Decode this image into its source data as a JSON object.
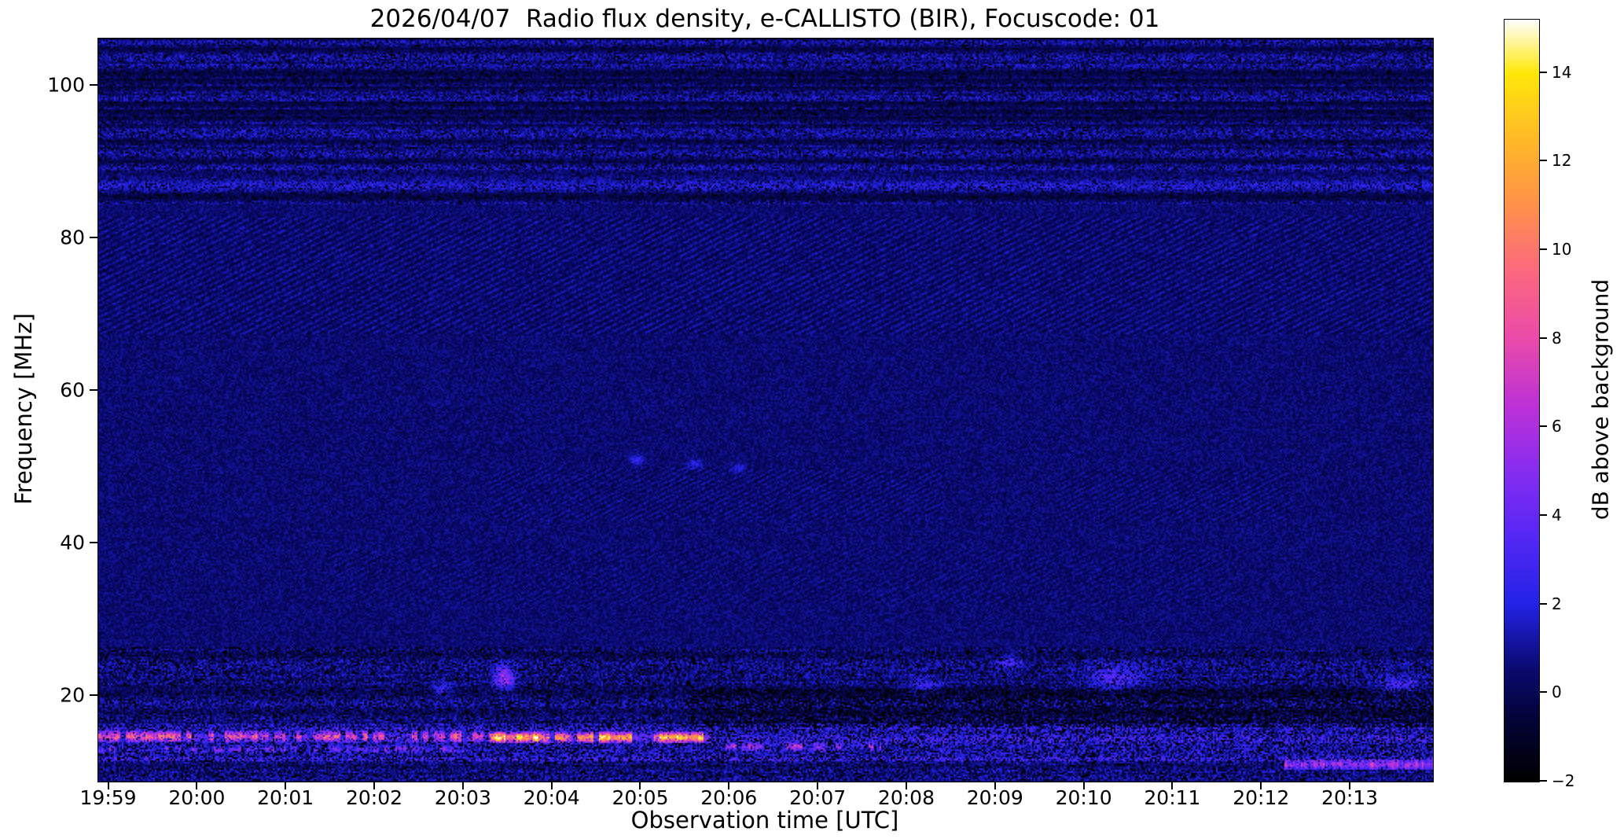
{
  "chart_data": {
    "type": "heatmap",
    "title": "2026/04/07  Radio flux density, e-CALLISTO (BIR), Focuscode: 01",
    "xlabel": "Observation time [UTC]",
    "ylabel": "Frequency [MHz]",
    "colorbar_label": "dB above background",
    "time_range_minutes_after_1959": [
      -0.12,
      14.93
    ],
    "freq_range_mhz": [
      8.8,
      106.2
    ],
    "x_ticks": [
      {
        "t": 0,
        "label": "19:59"
      },
      {
        "t": 1,
        "label": "20:00"
      },
      {
        "t": 2,
        "label": "20:01"
      },
      {
        "t": 3,
        "label": "20:02"
      },
      {
        "t": 4,
        "label": "20:03"
      },
      {
        "t": 5,
        "label": "20:04"
      },
      {
        "t": 6,
        "label": "20:05"
      },
      {
        "t": 7,
        "label": "20:06"
      },
      {
        "t": 8,
        "label": "20:07"
      },
      {
        "t": 9,
        "label": "20:08"
      },
      {
        "t": 10,
        "label": "20:09"
      },
      {
        "t": 11,
        "label": "20:10"
      },
      {
        "t": 12,
        "label": "20:11"
      },
      {
        "t": 13,
        "label": "20:12"
      },
      {
        "t": 14,
        "label": "20:13"
      }
    ],
    "y_ticks": [
      {
        "v": 20,
        "label": "20"
      },
      {
        "v": 40,
        "label": "40"
      },
      {
        "v": 60,
        "label": "60"
      },
      {
        "v": 80,
        "label": "80"
      },
      {
        "v": 100,
        "label": "100"
      }
    ],
    "colorbar_range": [
      -2,
      15.2
    ],
    "colorbar_ticks": [
      {
        "v": -2,
        "label": "−2"
      },
      {
        "v": 0,
        "label": "0"
      },
      {
        "v": 2,
        "label": "2"
      },
      {
        "v": 4,
        "label": "4"
      },
      {
        "v": 6,
        "label": "6"
      },
      {
        "v": 8,
        "label": "8"
      },
      {
        "v": 10,
        "label": "10"
      },
      {
        "v": 12,
        "label": "12"
      },
      {
        "v": 14,
        "label": "14"
      }
    ],
    "colormap_stops": [
      [
        -2,
        0,
        0,
        0
      ],
      [
        -0.5,
        4,
        4,
        60
      ],
      [
        0.5,
        10,
        10,
        110
      ],
      [
        2,
        35,
        35,
        230
      ],
      [
        3.5,
        85,
        40,
        245
      ],
      [
        5,
        135,
        45,
        240
      ],
      [
        6.5,
        190,
        50,
        215
      ],
      [
        8,
        235,
        75,
        170
      ],
      [
        9.5,
        252,
        105,
        128
      ],
      [
        11,
        255,
        145,
        75
      ],
      [
        12.5,
        255,
        185,
        40
      ],
      [
        14,
        255,
        232,
        10
      ],
      [
        15.2,
        255,
        255,
        255
      ]
    ],
    "features": [
      {
        "kind": "background",
        "level": 0.45,
        "noise": 0.75
      },
      {
        "kind": "rfi",
        "f": [
          84.5,
          106.2
        ],
        "amp": 2.4,
        "bias": -0.7,
        "dark": 0.12,
        "rowmod": 1
      },
      {
        "kind": "hline",
        "f": [
          86.6,
          88.8
        ],
        "amp": 1.0
      },
      {
        "kind": "rfi",
        "f": [
          8.8,
          26.5
        ],
        "amp": 2.6,
        "bias": -1.0,
        "dark": 0.18,
        "rowmod": 0.5
      },
      {
        "kind": "rfi",
        "f": [
          11.5,
          16.5
        ],
        "amp": 2.2,
        "bias": -0.2,
        "dark": 0.05,
        "rowmod": 0
      },
      {
        "kind": "rfi",
        "f": [
          16.0,
          21.0
        ],
        "t": [
          6.5,
          14.93
        ],
        "amp": 1.2,
        "bias": -1.4,
        "dark": 0.3,
        "rowmod": 0
      },
      {
        "kind": "diagonal",
        "f": [
          67.5,
          83.0
        ],
        "t": [
          -0.2,
          15.0
        ],
        "amp": 0.6,
        "period": 15
      },
      {
        "kind": "diagonal",
        "f": [
          43.0,
          50.0
        ],
        "t": [
          4.3,
          9.4
        ],
        "amp": 0.45,
        "period": 13
      },
      {
        "kind": "diagonal",
        "f": [
          43.0,
          50.0
        ],
        "t": [
          10.7,
          13.3
        ],
        "amp": 0.42,
        "period": 13
      },
      {
        "kind": "diagonal",
        "f": [
          32.0,
          39.5
        ],
        "t": [
          2.5,
          12.6
        ],
        "amp": 0.3,
        "period": 14
      },
      {
        "kind": "burst",
        "f": [
          14.0,
          15.6
        ],
        "t": [
          -0.12,
          4.3
        ],
        "amp": 8,
        "gap": 0.35
      },
      {
        "kind": "burst",
        "f": [
          13.9,
          15.4
        ],
        "t": [
          4.3,
          6.78
        ],
        "amp": 13.5,
        "gap": 0.3
      },
      {
        "kind": "burst",
        "f": [
          12.6,
          13.6
        ],
        "t": [
          -0.12,
          4.0
        ],
        "amp": 3.5,
        "gap": 0.45
      },
      {
        "kind": "burst",
        "f": [
          12.9,
          14.0
        ],
        "t": [
          6.9,
          8.7
        ],
        "amp": 5.5,
        "gap": 0.55
      },
      {
        "kind": "streak",
        "f": [
          10.4,
          11.7
        ],
        "t": [
          13.25,
          14.93
        ],
        "amp": 7
      },
      {
        "kind": "blob",
        "t": 4.45,
        "f": 22.5,
        "rt": 0.12,
        "rf": 1.5,
        "amp": 6
      },
      {
        "kind": "blob",
        "t": 3.75,
        "f": 21.0,
        "rt": 0.1,
        "rf": 0.8,
        "amp": 3
      },
      {
        "kind": "blob",
        "t": 11.35,
        "f": 22.5,
        "rt": 0.3,
        "rf": 1.6,
        "amp": 3.2
      },
      {
        "kind": "blob",
        "t": 10.15,
        "f": 24.5,
        "rt": 0.15,
        "rf": 0.9,
        "amp": 2.6
      },
      {
        "kind": "blob",
        "t": 14.55,
        "f": 21.5,
        "rt": 0.25,
        "rf": 1.2,
        "amp": 3.0
      },
      {
        "kind": "blob",
        "t": 9.2,
        "f": 21.5,
        "rt": 0.2,
        "rf": 1.0,
        "amp": 2.5
      },
      {
        "kind": "blob",
        "t": 5.95,
        "f": 51.0,
        "rt": 0.08,
        "rf": 0.7,
        "amp": 2.2
      },
      {
        "kind": "blob",
        "t": 6.6,
        "f": 50.5,
        "rt": 0.08,
        "rf": 0.7,
        "amp": 2.0
      },
      {
        "kind": "blob",
        "t": 7.1,
        "f": 50.0,
        "rt": 0.08,
        "rf": 0.6,
        "amp": 1.8
      }
    ]
  }
}
